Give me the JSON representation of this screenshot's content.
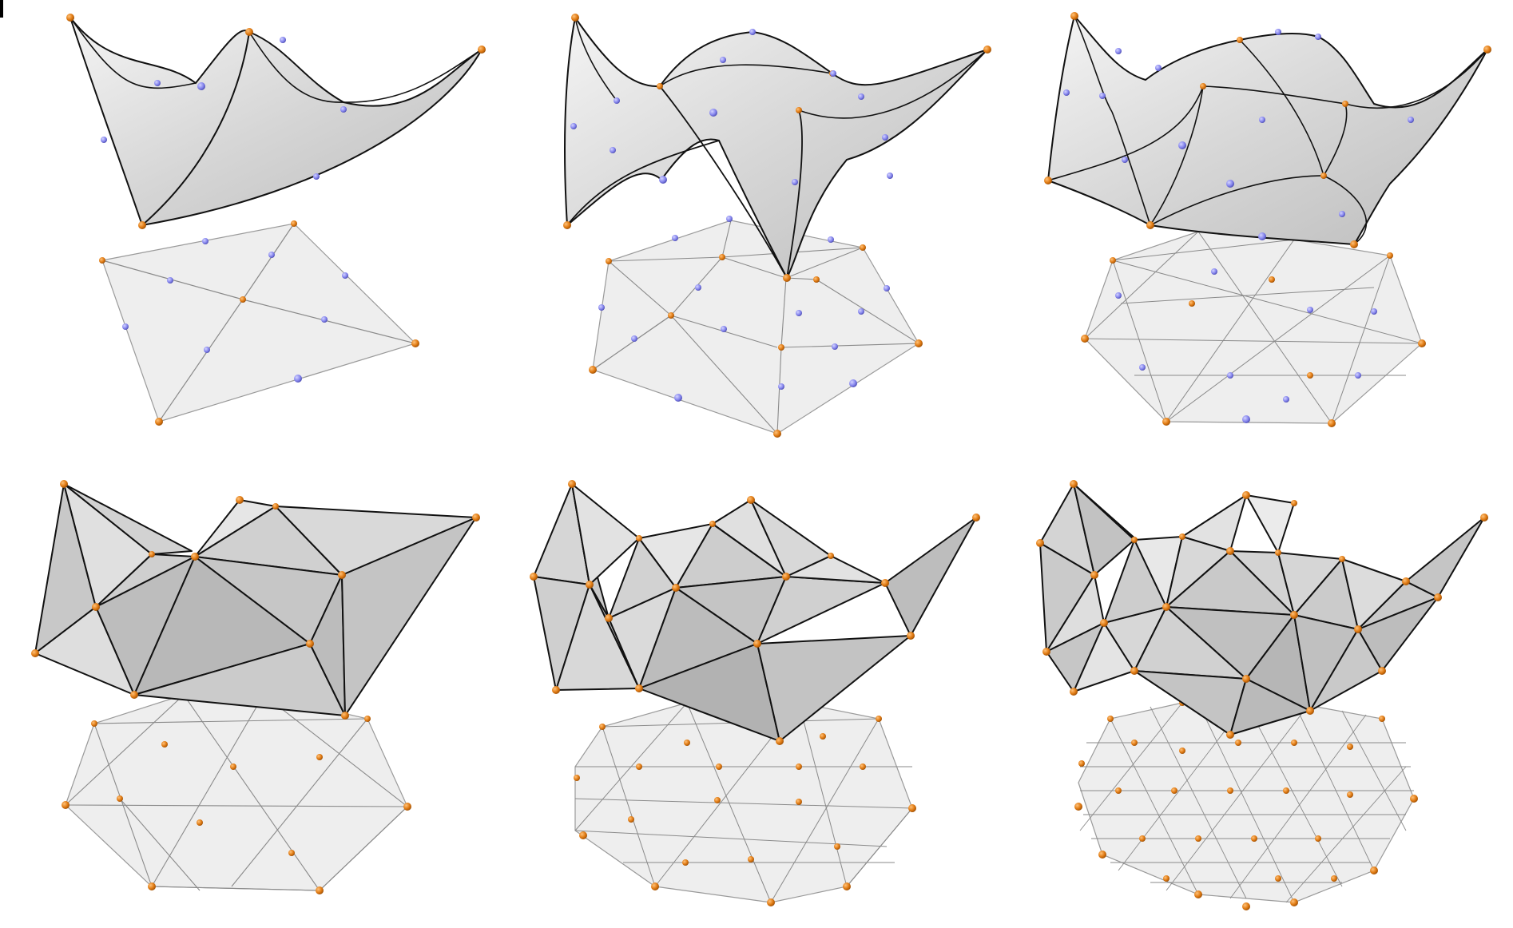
{
  "figure": {
    "description_marker": "",
    "colors": {
      "background": "#ffffff",
      "surface_fill_light": "#f1f1f1",
      "surface_fill_mid": "#d9d9d9",
      "surface_fill_dark": "#b9b9b9",
      "domain_fill": "#eeeeee",
      "edge_stroke": "#111111",
      "domain_edge_stroke": "#8a8a8a",
      "vertex_node": "#e07a12",
      "edge_node": "#8c8cf0"
    },
    "panels": [
      {
        "id": "top-left",
        "kind": "curved-patch",
        "refinement_level": 1
      },
      {
        "id": "top-middle",
        "kind": "curved-patch",
        "refinement_level": 2
      },
      {
        "id": "top-right",
        "kind": "curved-patch",
        "refinement_level": 3
      },
      {
        "id": "bottom-left",
        "kind": "flat-triangulation",
        "refinement_level": 1
      },
      {
        "id": "bottom-middle",
        "kind": "flat-triangulation",
        "refinement_level": 2
      },
      {
        "id": "bottom-right",
        "kind": "flat-triangulation",
        "refinement_level": 3
      }
    ]
  }
}
